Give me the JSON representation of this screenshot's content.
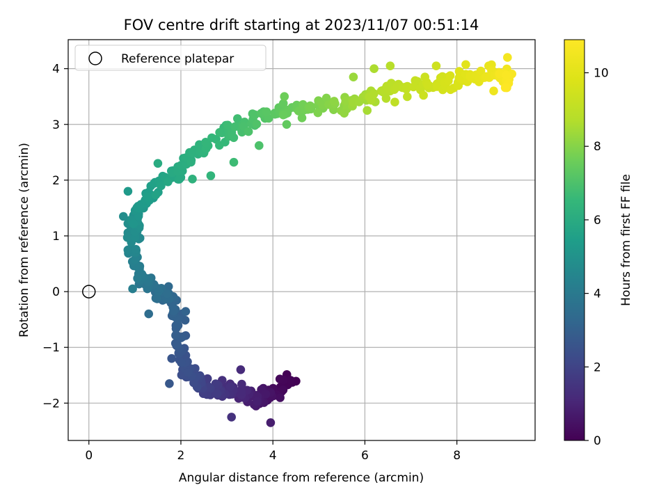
{
  "chart_data": {
    "type": "scatter",
    "title": "FOV centre drift starting at 2023/11/07 00:51:14",
    "xlabel": "Angular distance from reference (arcmin)",
    "ylabel": "Rotation from reference (arcmin)",
    "xlim": [
      -0.45,
      9.7
    ],
    "ylim": [
      -2.67,
      4.52
    ],
    "x_ticks": [
      0,
      2,
      4,
      6,
      8
    ],
    "y_ticks": [
      -2,
      -1,
      0,
      1,
      2,
      3,
      4
    ],
    "grid": true,
    "legend": {
      "placement": "top-left",
      "entries": [
        "Reference platepar"
      ]
    },
    "reference_point": {
      "x": 0,
      "y": 0,
      "label": "Reference platepar"
    },
    "colorbar": {
      "label": "Hours from first FF file",
      "min": 0,
      "max": 10.9,
      "ticks": [
        0,
        2,
        4,
        6,
        8,
        10
      ],
      "colormap": "viridis"
    },
    "series": [
      {
        "color_by": "hours",
        "path": [
          [
            4.45,
            -1.58,
            0.0
          ],
          [
            4.05,
            -1.82,
            0.3
          ],
          [
            3.8,
            -1.95,
            0.6
          ],
          [
            3.5,
            -1.85,
            0.9
          ],
          [
            3.2,
            -1.75,
            1.2
          ],
          [
            2.9,
            -1.8,
            1.5
          ],
          [
            2.6,
            -1.75,
            1.8
          ],
          [
            2.35,
            -1.6,
            2.1
          ],
          [
            2.15,
            -1.4,
            2.4
          ],
          [
            2.0,
            -1.0,
            2.7
          ],
          [
            1.95,
            -0.5,
            3.0
          ],
          [
            1.75,
            -0.1,
            3.3
          ],
          [
            1.45,
            0.0,
            3.6
          ],
          [
            1.2,
            0.2,
            3.9
          ],
          [
            1.0,
            0.5,
            4.2
          ],
          [
            0.95,
            0.8,
            4.5
          ],
          [
            0.95,
            1.1,
            4.8
          ],
          [
            1.05,
            1.4,
            5.1
          ],
          [
            1.3,
            1.7,
            5.4
          ],
          [
            1.6,
            1.95,
            5.7
          ],
          [
            2.0,
            2.2,
            6.0
          ],
          [
            2.4,
            2.55,
            6.3
          ],
          [
            2.9,
            2.85,
            6.6
          ],
          [
            3.4,
            3.0,
            6.9
          ],
          [
            3.9,
            3.15,
            7.2
          ],
          [
            4.4,
            3.25,
            7.5
          ],
          [
            4.9,
            3.3,
            7.8
          ],
          [
            5.4,
            3.35,
            8.1
          ],
          [
            5.9,
            3.45,
            8.4
          ],
          [
            6.3,
            3.55,
            8.7
          ],
          [
            6.8,
            3.7,
            9.0
          ],
          [
            7.3,
            3.7,
            9.3
          ],
          [
            7.8,
            3.75,
            9.6
          ],
          [
            8.2,
            3.85,
            9.9
          ],
          [
            8.6,
            3.9,
            10.2
          ],
          [
            9.0,
            3.85,
            10.5
          ],
          [
            9.15,
            3.75,
            10.9
          ]
        ],
        "n_points": 540,
        "spread": 0.11,
        "outliers": [
          [
            3.1,
            -2.25,
            1.4
          ],
          [
            3.3,
            -1.4,
            1.2
          ],
          [
            3.95,
            -2.35,
            0.8
          ],
          [
            1.75,
            -1.65,
            2.7
          ],
          [
            1.8,
            -1.2,
            2.6
          ],
          [
            1.3,
            -0.4,
            3.5
          ],
          [
            0.95,
            0.05,
            4.2
          ],
          [
            0.75,
            1.35,
            4.8
          ],
          [
            0.85,
            1.8,
            5.3
          ],
          [
            1.5,
            2.3,
            6.0
          ],
          [
            2.25,
            2.02,
            6.3
          ],
          [
            2.65,
            2.08,
            6.4
          ],
          [
            3.15,
            2.32,
            6.7
          ],
          [
            3.7,
            2.62,
            7.0
          ],
          [
            4.3,
            3.0,
            7.4
          ],
          [
            4.25,
            3.5,
            7.6
          ],
          [
            5.55,
            3.2,
            8.2
          ],
          [
            5.75,
            3.85,
            8.3
          ],
          [
            6.05,
            3.25,
            8.5
          ],
          [
            6.2,
            4.0,
            8.6
          ],
          [
            6.55,
            4.05,
            8.8
          ],
          [
            6.65,
            3.4,
            9.0
          ],
          [
            7.55,
            4.05,
            9.4
          ],
          [
            8.8,
            3.6,
            10.4
          ],
          [
            9.1,
            4.2,
            10.6
          ]
        ]
      }
    ]
  }
}
